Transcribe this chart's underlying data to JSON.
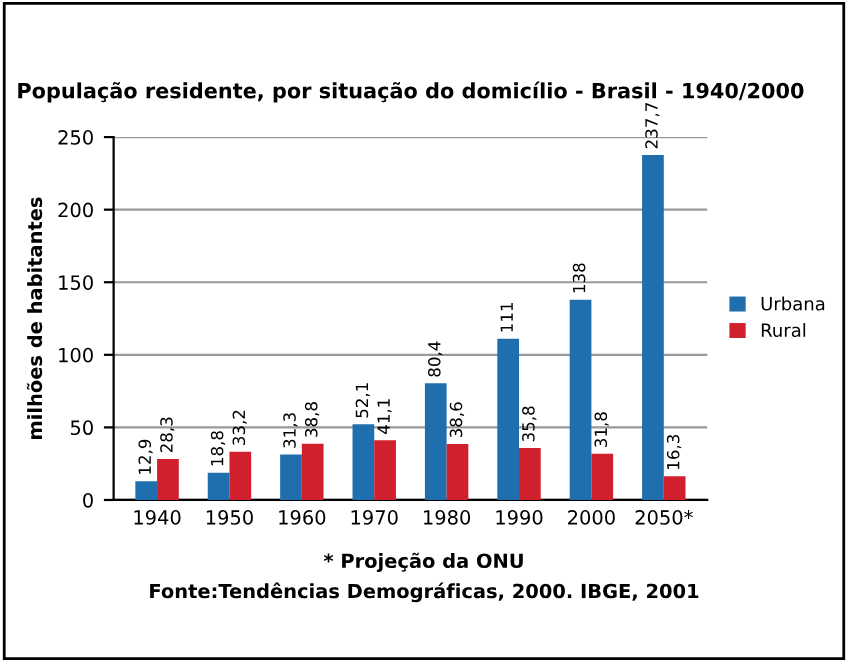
{
  "chart_data": {
    "type": "bar",
    "title": "População residente, por situação do domicílio - Brasil - 1940/2000",
    "ylabel": "milhões de habitantes",
    "categories": [
      "1940",
      "1950",
      "1960",
      "1970",
      "1980",
      "1990",
      "2000",
      "2050*"
    ],
    "series": [
      {
        "name": "Urbana",
        "color": "#1f6fae",
        "values": [
          12.9,
          18.8,
          31.3,
          52.1,
          80.4,
          111,
          138,
          237.7
        ],
        "value_labels": [
          "12,9",
          "18,8",
          "31,3",
          "52,1",
          "80,4",
          "111",
          "138",
          "237,7"
        ]
      },
      {
        "name": "Rural",
        "color": "#d0202e",
        "values": [
          28.3,
          33.2,
          38.8,
          41.1,
          38.6,
          35.8,
          31.8,
          16.3
        ],
        "value_labels": [
          "28,3",
          "33,2",
          "38,8",
          "41,1",
          "38,6",
          "35,8",
          "31,8",
          "16,3"
        ]
      }
    ],
    "ylim": [
      0,
      250
    ],
    "yticks": [
      0,
      50,
      100,
      150,
      200,
      250
    ],
    "grid": "y",
    "legend": "right",
    "annotations": [
      "* Projeção da ONU",
      "Fonte:Tendências Demográficas, 2000. IBGE, 2001"
    ]
  }
}
